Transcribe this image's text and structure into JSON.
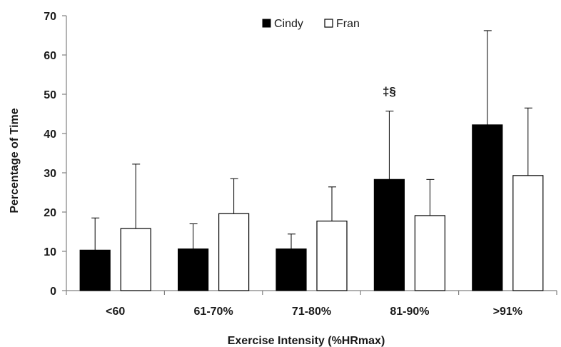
{
  "chart_data": {
    "type": "bar",
    "title": "",
    "xlabel": "Exercise Intensity (%HRmax)",
    "ylabel": "Percentage of Time",
    "ylim": [
      0,
      70
    ],
    "yticks": [
      0,
      10,
      20,
      30,
      40,
      50,
      60,
      70
    ],
    "categories": [
      "<60",
      "61-70%",
      "71-80%",
      "81-90%",
      ">91%"
    ],
    "series": [
      {
        "name": "Cindy",
        "color": "#000000",
        "values": [
          10.3,
          10.6,
          10.6,
          28.3,
          42.2
        ],
        "error": [
          8.2,
          6.4,
          3.8,
          17.4,
          24.0
        ]
      },
      {
        "name": "Fran",
        "color": "#ffffff",
        "values": [
          15.8,
          19.6,
          17.7,
          19.1,
          29.3
        ],
        "error": [
          16.4,
          8.9,
          8.7,
          9.2,
          17.2
        ]
      }
    ],
    "annotations": [
      {
        "category": "81-90%",
        "text": "‡§"
      }
    ],
    "legend_position": "top-center",
    "grid": false
  }
}
